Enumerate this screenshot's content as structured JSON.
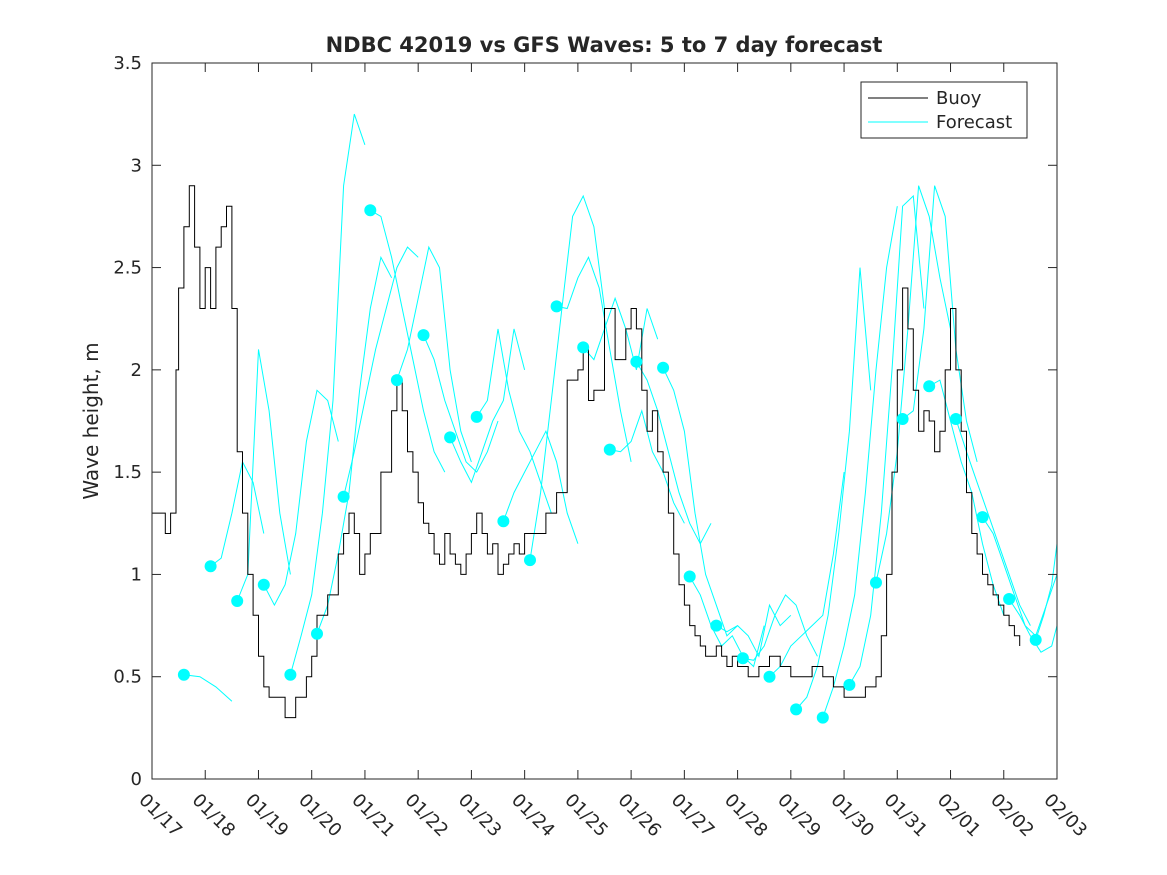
{
  "chart_data": {
    "type": "line",
    "title": "NDBC 42019 vs GFS Waves: 5 to 7 day forecast",
    "xlabel": "",
    "ylabel": "Wave height, m",
    "xlim": [
      0,
      17
    ],
    "ylim": [
      0,
      3.5
    ],
    "x_tick_values": [
      0,
      1,
      2,
      3,
      4,
      5,
      6,
      7,
      8,
      9,
      10,
      11,
      12,
      13,
      14,
      15,
      16,
      17
    ],
    "x_tick_labels": [
      "01/17",
      "01/18",
      "01/19",
      "01/20",
      "01/21",
      "01/22",
      "01/23",
      "01/24",
      "01/25",
      "01/26",
      "01/27",
      "01/28",
      "01/29",
      "01/30",
      "01/31",
      "02/01",
      "02/02",
      "02/03"
    ],
    "y_tick_values": [
      0,
      0.5,
      1,
      1.5,
      2,
      2.5,
      3,
      3.5
    ],
    "y_tick_labels": [
      "0",
      "0.5",
      "1",
      "1.5",
      "2",
      "2.5",
      "3",
      "3.5"
    ],
    "legend": {
      "position": "top-right",
      "entries": [
        "Buoy",
        "Forecast"
      ]
    },
    "colors": {
      "buoy": "#000000",
      "forecast": "#00ffff",
      "axes": "#262626"
    },
    "buoy": {
      "name": "Buoy",
      "x": [
        0,
        0.25,
        0.35,
        0.45,
        0.5,
        0.6,
        0.7,
        0.8,
        0.9,
        1.0,
        1.1,
        1.2,
        1.3,
        1.4,
        1.5,
        1.6,
        1.7,
        1.8,
        1.9,
        2.0,
        2.1,
        2.2,
        2.3,
        2.5,
        2.7,
        2.9,
        3.0,
        3.1,
        3.3,
        3.5,
        3.6,
        3.7,
        3.8,
        3.9,
        4.0,
        4.1,
        4.3,
        4.5,
        4.6,
        4.7,
        4.8,
        4.9,
        5.0,
        5.1,
        5.2,
        5.3,
        5.4,
        5.5,
        5.6,
        5.7,
        5.8,
        5.9,
        6.0,
        6.1,
        6.2,
        6.3,
        6.4,
        6.5,
        6.6,
        6.7,
        6.8,
        6.9,
        7.0,
        7.2,
        7.4,
        7.6,
        7.8,
        8.0,
        8.1,
        8.2,
        8.3,
        8.5,
        8.7,
        8.9,
        9.0,
        9.1,
        9.2,
        9.3,
        9.4,
        9.5,
        9.6,
        9.7,
        9.8,
        9.9,
        10.0,
        10.1,
        10.2,
        10.3,
        10.4,
        10.5,
        10.6,
        10.7,
        10.8,
        10.9,
        11.0,
        11.2,
        11.4,
        11.6,
        11.8,
        12.0,
        12.2,
        12.4,
        12.6,
        12.8,
        13.0,
        13.2,
        13.4,
        13.6,
        13.7,
        13.8,
        13.9,
        14.0,
        14.1,
        14.2,
        14.3,
        14.4,
        14.5,
        14.6,
        14.7,
        14.8,
        14.9,
        15.0,
        15.1,
        15.2,
        15.3,
        15.4,
        15.5,
        15.6,
        15.7,
        15.8,
        15.9,
        16.0,
        16.1,
        16.2,
        16.3
      ],
      "values": [
        1.3,
        1.2,
        1.3,
        2.0,
        2.4,
        2.7,
        2.9,
        2.6,
        2.3,
        2.5,
        2.3,
        2.6,
        2.7,
        2.8,
        2.3,
        1.6,
        1.3,
        1.0,
        0.8,
        0.6,
        0.45,
        0.4,
        0.4,
        0.3,
        0.4,
        0.5,
        0.6,
        0.8,
        0.9,
        1.1,
        1.2,
        1.3,
        1.2,
        1.0,
        1.1,
        1.2,
        1.5,
        1.8,
        1.95,
        1.8,
        1.6,
        1.5,
        1.35,
        1.25,
        1.2,
        1.1,
        1.05,
        1.2,
        1.1,
        1.05,
        1.0,
        1.1,
        1.2,
        1.3,
        1.2,
        1.1,
        1.15,
        1.0,
        1.05,
        1.1,
        1.15,
        1.1,
        1.2,
        1.2,
        1.3,
        1.4,
        1.95,
        2.0,
        2.1,
        1.85,
        1.9,
        2.3,
        2.05,
        2.2,
        2.3,
        2.2,
        1.9,
        1.7,
        1.8,
        1.6,
        1.5,
        1.3,
        1.1,
        0.95,
        0.85,
        0.75,
        0.7,
        0.65,
        0.6,
        0.6,
        0.65,
        0.6,
        0.55,
        0.6,
        0.55,
        0.5,
        0.55,
        0.6,
        0.55,
        0.5,
        0.5,
        0.55,
        0.5,
        0.45,
        0.4,
        0.4,
        0.45,
        0.5,
        0.7,
        1.0,
        1.5,
        2.0,
        2.4,
        2.2,
        1.9,
        1.7,
        1.8,
        1.75,
        1.6,
        1.7,
        2.0,
        2.3,
        2.0,
        1.7,
        1.4,
        1.2,
        1.1,
        1.0,
        0.95,
        0.9,
        0.85,
        0.8,
        0.75,
        0.7,
        0.65
      ]
    },
    "forecast": {
      "name": "Forecast",
      "series": [
        {
          "x": [
            0.6,
            0.9,
            1.2,
            1.5
          ],
          "values": [
            0.51,
            0.5,
            0.45,
            0.38
          ]
        },
        {
          "x": [
            1.1,
            1.3,
            1.5,
            1.7,
            1.9,
            2.1
          ],
          "values": [
            1.04,
            1.08,
            1.3,
            1.55,
            1.45,
            1.2
          ]
        },
        {
          "x": [
            1.6,
            1.8,
            2.0,
            2.2,
            2.4,
            2.6
          ],
          "values": [
            0.87,
            1.0,
            2.1,
            1.8,
            1.3,
            1.0
          ]
        },
        {
          "x": [
            2.1,
            2.3,
            2.5,
            2.7,
            2.9,
            3.1,
            3.3,
            3.5
          ],
          "values": [
            0.95,
            0.85,
            0.95,
            1.2,
            1.65,
            1.9,
            1.85,
            1.65
          ]
        },
        {
          "x": [
            2.6,
            2.8,
            3.0,
            3.2,
            3.4,
            3.6,
            3.8,
            4.0
          ],
          "values": [
            0.51,
            0.7,
            0.9,
            1.3,
            1.85,
            2.9,
            3.25,
            3.1
          ]
        },
        {
          "x": [
            3.1,
            3.3,
            3.5,
            3.7,
            3.9,
            4.1,
            4.3,
            4.5
          ],
          "values": [
            0.71,
            0.85,
            1.1,
            1.4,
            1.9,
            2.3,
            2.55,
            2.45
          ]
        },
        {
          "x": [
            3.6,
            3.8,
            4.0,
            4.2,
            4.4,
            4.6,
            4.8,
            5.0
          ],
          "values": [
            1.38,
            1.6,
            1.85,
            2.1,
            2.3,
            2.5,
            2.6,
            2.55
          ]
        },
        {
          "x": [
            4.1,
            4.3,
            4.5,
            4.7,
            4.9,
            5.1,
            5.3,
            5.5
          ],
          "values": [
            2.78,
            2.75,
            2.55,
            2.3,
            2.05,
            1.8,
            1.6,
            1.5
          ]
        },
        {
          "x": [
            4.6,
            4.8,
            5.0,
            5.2,
            5.4,
            5.6,
            5.8,
            6.0
          ],
          "values": [
            1.95,
            2.1,
            2.35,
            2.6,
            2.5,
            2.0,
            1.7,
            1.55
          ]
        },
        {
          "x": [
            5.1,
            5.3,
            5.5,
            5.7,
            5.9,
            6.1,
            6.3,
            6.5
          ],
          "values": [
            2.17,
            2.05,
            1.85,
            1.7,
            1.55,
            1.5,
            1.6,
            1.75
          ]
        },
        {
          "x": [
            5.6,
            5.8,
            6.0,
            6.2,
            6.4,
            6.6,
            6.8,
            7.0
          ],
          "values": [
            1.67,
            1.55,
            1.45,
            1.6,
            1.75,
            1.85,
            2.2,
            2.0
          ]
        },
        {
          "x": [
            6.1,
            6.3,
            6.5,
            6.7,
            6.9,
            7.1,
            7.3,
            7.5
          ],
          "values": [
            1.77,
            1.85,
            2.2,
            1.9,
            1.7,
            1.6,
            1.45,
            1.3
          ]
        },
        {
          "x": [
            6.6,
            6.8,
            7.0,
            7.2,
            7.4,
            7.6,
            7.8,
            8.0
          ],
          "values": [
            1.26,
            1.4,
            1.5,
            1.6,
            1.7,
            1.55,
            1.3,
            1.15
          ]
        },
        {
          "x": [
            7.1,
            7.3,
            7.5,
            7.7,
            7.9,
            8.1,
            8.3,
            8.5
          ],
          "values": [
            1.07,
            1.4,
            1.85,
            2.3,
            2.75,
            2.85,
            2.7,
            2.3
          ]
        },
        {
          "x": [
            7.6,
            7.8,
            8.0,
            8.2,
            8.4,
            8.6,
            8.8,
            9.0
          ],
          "values": [
            2.31,
            2.3,
            2.45,
            2.55,
            2.4,
            2.1,
            1.8,
            1.55
          ]
        },
        {
          "x": [
            8.1,
            8.3,
            8.5,
            8.7,
            8.9,
            9.1,
            9.3,
            9.5
          ],
          "values": [
            2.11,
            2.05,
            2.2,
            2.35,
            2.2,
            2.0,
            2.3,
            2.15
          ]
        },
        {
          "x": [
            8.6,
            8.8,
            9.0,
            9.2,
            9.4,
            9.6,
            9.8,
            10.0
          ],
          "values": [
            1.61,
            1.6,
            1.65,
            1.8,
            1.6,
            1.5,
            1.35,
            1.25
          ]
        },
        {
          "x": [
            9.1,
            9.3,
            9.5,
            9.7,
            9.9,
            10.1,
            10.3,
            10.5
          ],
          "values": [
            2.04,
            1.95,
            1.8,
            1.6,
            1.4,
            1.25,
            1.15,
            1.25
          ]
        },
        {
          "x": [
            9.6,
            9.8,
            10.0,
            10.2,
            10.4,
            10.6,
            10.8,
            11.0
          ],
          "values": [
            2.01,
            1.9,
            1.7,
            1.3,
            1.0,
            0.85,
            0.7,
            0.75
          ]
        },
        {
          "x": [
            10.1,
            10.3,
            10.5,
            10.7,
            10.9,
            11.1,
            11.3,
            11.5
          ],
          "values": [
            0.99,
            0.9,
            0.75,
            0.65,
            0.7,
            0.6,
            0.55,
            0.75
          ]
        },
        {
          "x": [
            10.6,
            10.8,
            11.0,
            11.2,
            11.4,
            11.6,
            11.8,
            12.0
          ],
          "values": [
            0.75,
            0.72,
            0.75,
            0.7,
            0.6,
            0.85,
            0.75,
            0.8
          ]
        },
        {
          "x": [
            11.1,
            11.3,
            11.5,
            11.7,
            11.9,
            12.1,
            12.3,
            12.5
          ],
          "values": [
            0.59,
            0.58,
            0.65,
            0.8,
            0.9,
            0.85,
            0.7,
            0.6
          ]
        },
        {
          "x": [
            11.6,
            11.8,
            12.0,
            12.2,
            12.4,
            12.6,
            12.8,
            13.0
          ],
          "values": [
            0.5,
            0.55,
            0.65,
            0.7,
            0.75,
            0.8,
            1.1,
            1.5
          ]
        },
        {
          "x": [
            12.1,
            12.3,
            12.5,
            12.7,
            12.9,
            13.1,
            13.3,
            13.5
          ],
          "values": [
            0.34,
            0.4,
            0.55,
            0.8,
            1.2,
            1.7,
            2.5,
            1.9
          ]
        },
        {
          "x": [
            12.6,
            12.8,
            13.0,
            13.2,
            13.4,
            13.6,
            13.8,
            14.0
          ],
          "values": [
            0.3,
            0.45,
            0.65,
            0.9,
            1.4,
            2.0,
            2.5,
            2.8
          ]
        },
        {
          "x": [
            13.1,
            13.3,
            13.5,
            13.7,
            13.9,
            14.1,
            14.3,
            14.5
          ],
          "values": [
            0.46,
            0.55,
            0.8,
            1.3,
            2.0,
            2.8,
            2.85,
            2.3
          ]
        },
        {
          "x": [
            13.6,
            13.8,
            14.0,
            14.2,
            14.4,
            14.6,
            14.8,
            15.0
          ],
          "values": [
            0.96,
            1.2,
            1.6,
            2.2,
            2.9,
            2.75,
            2.45,
            2.2
          ]
        },
        {
          "x": [
            14.1,
            14.3,
            14.5,
            14.7,
            14.9,
            15.1,
            15.3,
            15.5
          ],
          "values": [
            1.76,
            1.8,
            2.2,
            2.9,
            2.75,
            2.1,
            1.75,
            1.55
          ]
        },
        {
          "x": [
            14.6,
            14.8,
            15.0,
            15.2,
            15.4,
            15.6,
            15.8,
            16.0
          ],
          "values": [
            1.92,
            1.95,
            1.75,
            1.55,
            1.4,
            1.15,
            0.95,
            0.8
          ]
        },
        {
          "x": [
            15.1,
            15.3,
            15.5,
            15.7,
            15.9,
            16.1,
            16.3,
            16.5
          ],
          "values": [
            1.76,
            1.6,
            1.45,
            1.3,
            1.15,
            1.0,
            0.85,
            0.75
          ]
        },
        {
          "x": [
            15.6,
            15.8,
            16.0,
            16.2,
            16.4,
            16.6,
            16.8,
            17.0
          ],
          "values": [
            1.28,
            1.2,
            1.05,
            0.9,
            0.75,
            0.7,
            0.85,
            1.0
          ]
        },
        {
          "x": [
            16.1,
            16.3,
            16.5,
            16.7,
            16.9,
            17.0
          ],
          "values": [
            0.88,
            0.8,
            0.7,
            0.62,
            0.65,
            0.75
          ]
        },
        {
          "x": [
            16.6,
            16.75,
            16.9,
            17.0
          ],
          "values": [
            0.68,
            0.8,
            0.95,
            1.15
          ]
        }
      ],
      "markers": {
        "x": [
          0.6,
          1.1,
          1.6,
          2.1,
          2.6,
          3.1,
          3.6,
          4.1,
          4.6,
          5.1,
          5.6,
          6.1,
          6.6,
          7.1,
          7.6,
          8.1,
          8.6,
          9.1,
          9.6,
          10.1,
          10.6,
          11.1,
          11.6,
          12.1,
          12.6,
          13.1,
          13.6,
          14.1,
          14.6,
          15.1,
          15.6,
          16.1,
          16.6
        ],
        "values": [
          0.51,
          1.04,
          0.87,
          0.95,
          0.51,
          0.71,
          1.38,
          2.78,
          1.95,
          2.17,
          1.67,
          1.77,
          1.26,
          1.07,
          2.31,
          2.11,
          1.61,
          2.04,
          2.01,
          0.99,
          0.75,
          0.59,
          0.5,
          0.34,
          0.3,
          0.46,
          0.96,
          1.76,
          1.92,
          1.76,
          1.28,
          0.88,
          0.68
        ]
      }
    }
  }
}
